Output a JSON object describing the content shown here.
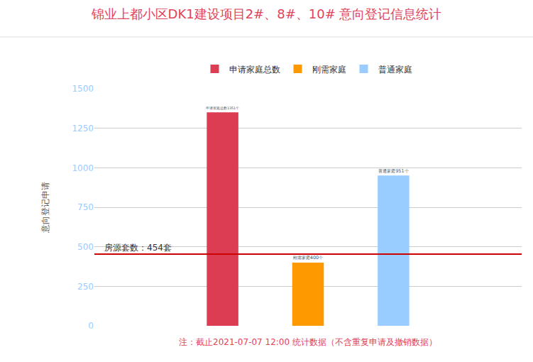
{
  "chart_data": {
    "type": "bar",
    "title": "锦业上都小区DK1建设项目2#、8#、10# 意向登记信息统计",
    "y_label": "意向登记申请",
    "categories": [
      null
    ],
    "series": [
      {
        "name": "申请家庭总数",
        "color": "#dc3d52",
        "values": [
          1351
        ],
        "value_labels": [
          "申请家庭总数1351个"
        ]
      },
      {
        "name": "刚需家庭",
        "color": "#ff9900",
        "values": [
          400
        ],
        "value_labels": [
          "刚需家庭400个"
        ]
      },
      {
        "name": "普通家庭",
        "color": "#99ccff",
        "values": [
          951
        ],
        "value_labels": [
          "普通家庭951个"
        ]
      }
    ],
    "ylim": [
      0,
      1500
    ],
    "yticks": [
      0,
      250,
      500,
      750,
      1000,
      1250,
      1500
    ],
    "grid": true,
    "legend": "top",
    "data_labels": true,
    "tick_labels": "y",
    "reference_line": {
      "value": 454,
      "label": "房源套数：454套",
      "color": "#cc0000"
    },
    "note": "注：截止2021-07-07 12:00 统计数据（不含重复申请及撤销数据）"
  }
}
